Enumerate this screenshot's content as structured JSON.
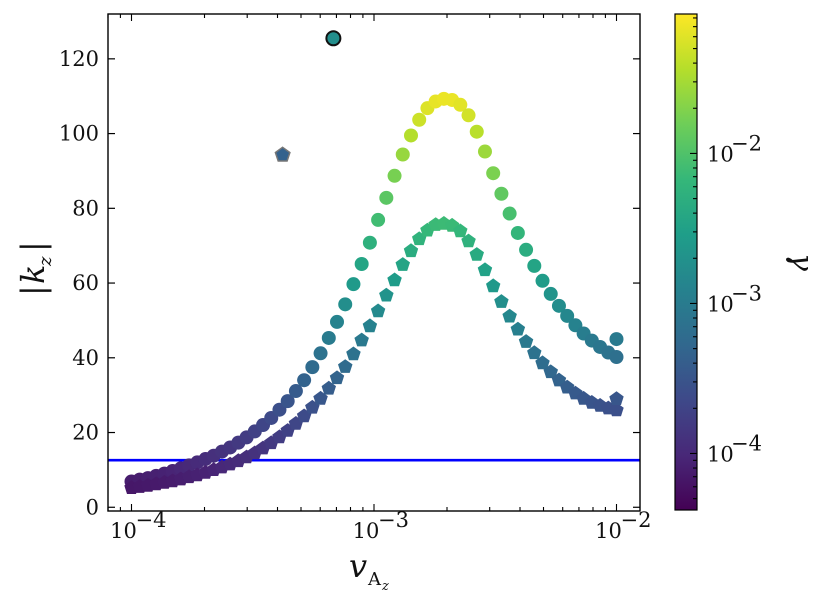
{
  "chart_data": {
    "type": "scatter",
    "title": "",
    "xlabel": "v_{A_z}",
    "ylabel": "|k_z|",
    "xscale": "log",
    "xlim": [
      8e-05,
      0.0125
    ],
    "ylim": [
      -1,
      132
    ],
    "grid": false,
    "legend": "none",
    "x_ticks": [
      {
        "value": 0.0001,
        "base": "10",
        "exp": "−4"
      },
      {
        "value": 0.001,
        "base": "10",
        "exp": "−3"
      },
      {
        "value": 0.01,
        "base": "10",
        "exp": "−2"
      }
    ],
    "y_ticks": [
      "0",
      "20",
      "40",
      "60",
      "80",
      "100",
      "120"
    ],
    "hline": {
      "y": 12.6,
      "color": "#0000ff",
      "xrange": [
        8e-05,
        0.0125
      ]
    },
    "series": [
      {
        "name": "circles",
        "marker": "circle",
        "x_range": [
          0.0001,
          0.01
        ],
        "n_points": 61,
        "y": [
          6.9,
          7.4,
          7.8,
          8.4,
          9.0,
          9.7,
          10.4,
          11.2,
          12.0,
          12.9,
          13.8,
          14.9,
          16.0,
          17.3,
          18.7,
          20.3,
          22.0,
          23.9,
          26.1,
          28.4,
          31.1,
          34.0,
          37.5,
          41.2,
          45.3,
          49.6,
          54.3,
          59.7,
          65.1,
          70.8,
          76.9,
          82.8,
          88.7,
          94.4,
          99.5,
          103.7,
          106.8,
          108.6,
          109.3,
          109.0,
          107.7,
          104.9,
          100.5,
          95.2,
          89.4,
          83.9,
          78.6,
          73.4,
          68.9,
          64.6,
          60.6,
          57.1,
          53.9,
          51.2,
          48.7,
          46.5,
          44.6,
          42.9,
          41.4,
          40.2,
          45.0
        ]
      },
      {
        "name": "pentagons",
        "marker": "pentagon",
        "x_range": [
          0.0001,
          0.01
        ],
        "n_points": 61,
        "y": [
          5.2,
          5.5,
          5.8,
          6.2,
          6.6,
          7.0,
          7.5,
          8.1,
          8.6,
          9.3,
          10.0,
          10.7,
          11.5,
          12.4,
          13.4,
          14.5,
          15.8,
          17.2,
          18.8,
          20.5,
          22.4,
          24.4,
          26.7,
          29.1,
          31.8,
          34.6,
          37.6,
          41.0,
          44.7,
          48.5,
          52.5,
          56.7,
          60.8,
          64.9,
          68.6,
          71.8,
          74.1,
          75.6,
          75.9,
          75.4,
          73.9,
          71.2,
          67.6,
          63.5,
          59.2,
          55.0,
          51.1,
          47.6,
          44.3,
          41.3,
          38.6,
          36.2,
          34.0,
          32.1,
          30.5,
          29.1,
          28.0,
          27.2,
          26.5,
          26.0,
          29.0
        ]
      },
      {
        "name": "outlier-circle",
        "marker": "circle",
        "points": [
          {
            "x": 0.00068,
            "y": 125.5,
            "gamma": 0.0018
          }
        ]
      },
      {
        "name": "outlier-pentagon",
        "marker": "pentagon",
        "points": [
          {
            "x": 0.00042,
            "y": 94.3,
            "gamma": 0.00045
          }
        ]
      }
    ],
    "colorbar": {
      "label": "γ",
      "cmap": "viridis",
      "scale": "log",
      "range": [
        4.2e-05,
        0.085
      ],
      "ticks": [
        {
          "value": 0.0001,
          "base": "10",
          "exp": "−4"
        },
        {
          "value": 0.001,
          "base": "10",
          "exp": "−3"
        },
        {
          "value": 0.01,
          "base": "10",
          "exp": "−2"
        }
      ]
    },
    "colors": {
      "viridis": [
        "#440154",
        "#482878",
        "#3e4989",
        "#31688e",
        "#26828e",
        "#1f9e89",
        "#35b779",
        "#6ece58",
        "#b5de2b",
        "#fde725"
      ]
    }
  }
}
